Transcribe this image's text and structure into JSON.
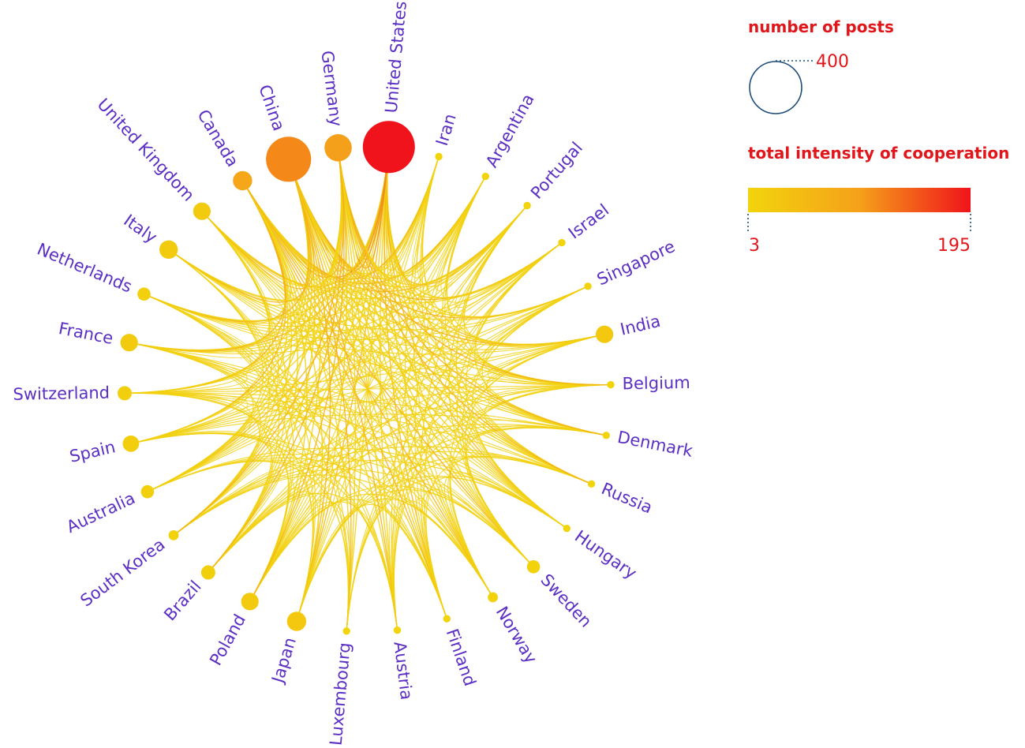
{
  "chart_data": {
    "type": "chord",
    "countries": [
      {
        "name": "United States",
        "posts": 400
      },
      {
        "name": "Iran",
        "posts": 8
      },
      {
        "name": "Argentina",
        "posts": 8
      },
      {
        "name": "Portugal",
        "posts": 8
      },
      {
        "name": "Israel",
        "posts": 8
      },
      {
        "name": "Singapore",
        "posts": 8
      },
      {
        "name": "India",
        "posts": 45
      },
      {
        "name": "Belgium",
        "posts": 8
      },
      {
        "name": "Denmark",
        "posts": 8
      },
      {
        "name": "Russia",
        "posts": 8
      },
      {
        "name": "Hungary",
        "posts": 8
      },
      {
        "name": "Sweden",
        "posts": 25
      },
      {
        "name": "Norway",
        "posts": 15
      },
      {
        "name": "Finland",
        "posts": 8
      },
      {
        "name": "Austria",
        "posts": 8
      },
      {
        "name": "Luxembourg",
        "posts": 8
      },
      {
        "name": "Japan",
        "posts": 55
      },
      {
        "name": "Poland",
        "posts": 45
      },
      {
        "name": "Brazil",
        "posts": 30
      },
      {
        "name": "South Korea",
        "posts": 15
      },
      {
        "name": "Australia",
        "posts": 25
      },
      {
        "name": "Spain",
        "posts": 40
      },
      {
        "name": "Switzerland",
        "posts": 30
      },
      {
        "name": "France",
        "posts": 45
      },
      {
        "name": "Netherlands",
        "posts": 25
      },
      {
        "name": "Italy",
        "posts": 50
      },
      {
        "name": "United Kingdom",
        "posts": 45
      },
      {
        "name": "Canada",
        "posts": 55
      },
      {
        "name": "China",
        "posts": 300
      },
      {
        "name": "Germany",
        "posts": 110
      }
    ],
    "node_intensity": {
      "United States": 195,
      "China": 115,
      "Germany": 100,
      "Canada": 90,
      "India": 25,
      "Japan": 25,
      "Poland": 20,
      "Italy": 20,
      "France": 20,
      "United Kingdom": 20,
      "Spain": 15,
      "Switzerland": 12,
      "Brazil": 12,
      "Netherlands": 10,
      "Australia": 10,
      "Sweden": 8,
      "Norway": 6,
      "South Korea": 6,
      "Iran": 3,
      "Argentina": 3,
      "Portugal": 3,
      "Israel": 3,
      "Singapore": 3,
      "Belgium": 3,
      "Denmark": 3,
      "Russia": 3,
      "Hungary": 3,
      "Finland": 3,
      "Austria": 3,
      "Luxembourg": 3
    }
  },
  "legend": {
    "size_title": "number of posts",
    "size_value": "400",
    "color_title": "total intensity of cooperation",
    "color_min": "3",
    "color_max": "195",
    "size_ref_posts": 400,
    "color_min_value": 3,
    "color_max_value": 195
  },
  "colors": {
    "label": "#5b2fc4",
    "legend_text": "#e0161b",
    "scale_low": "#f2d40c",
    "scale_mid": "#f5a11a",
    "scale_high": "#f0131b",
    "size_circle": "#1f4e79"
  }
}
